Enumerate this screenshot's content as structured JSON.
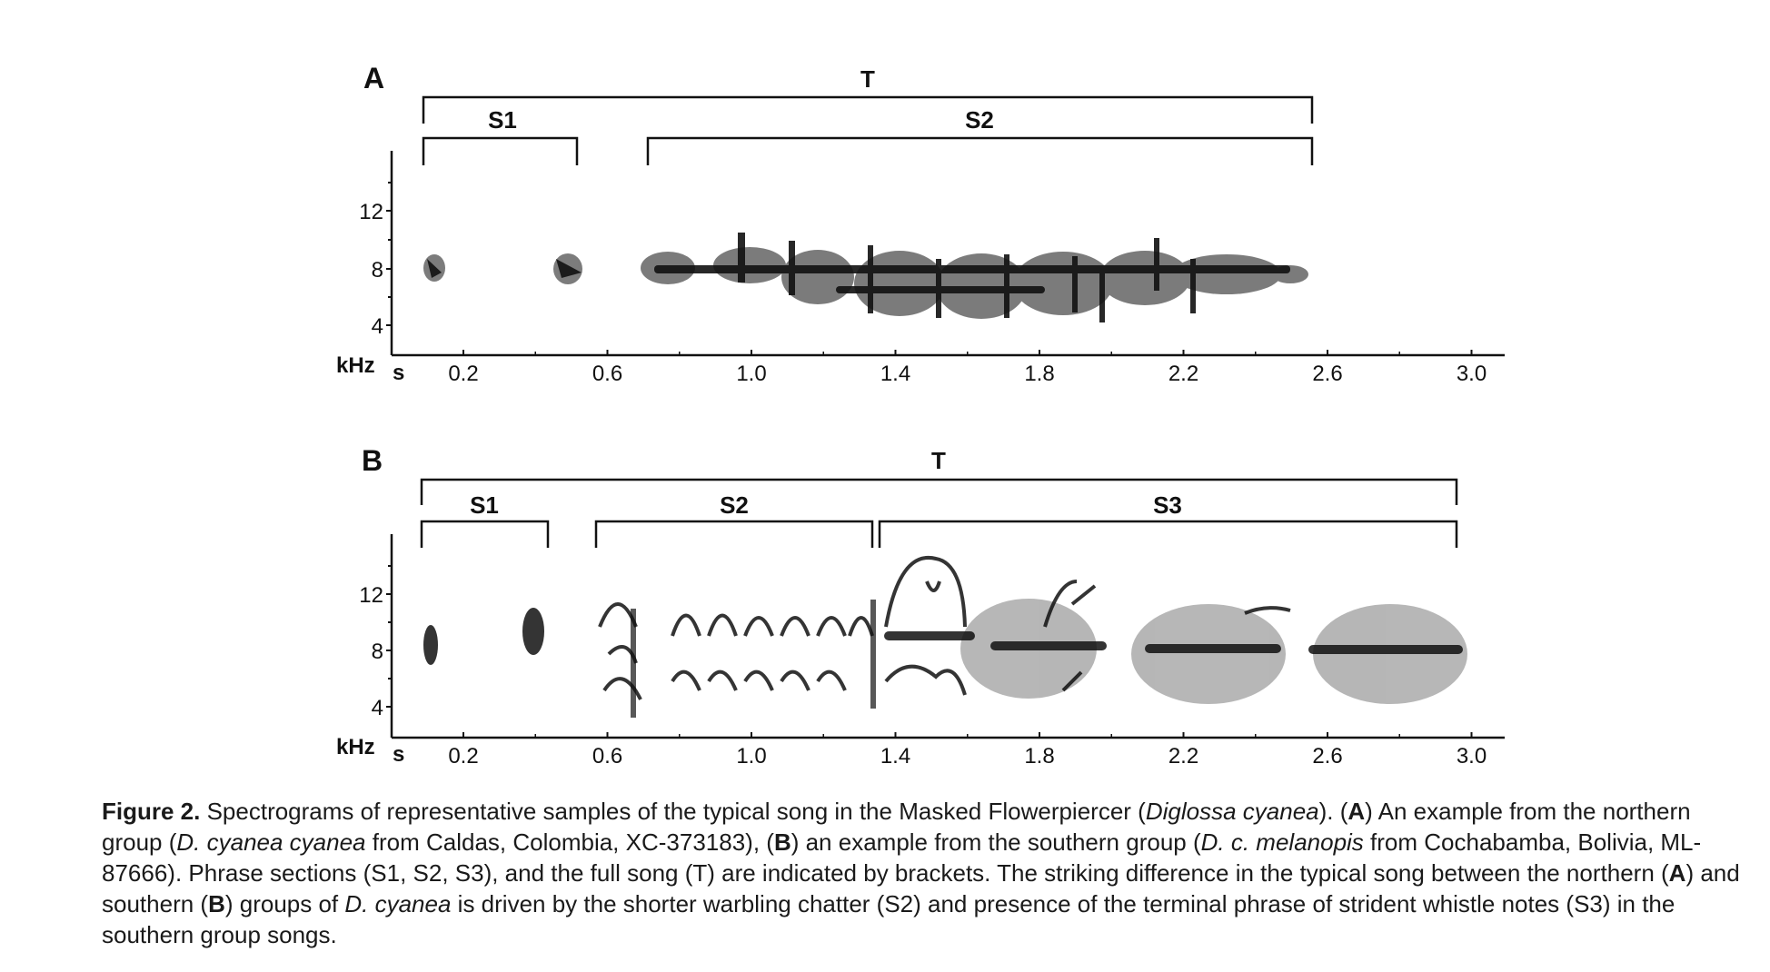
{
  "figure": {
    "panels": [
      {
        "letter": "A",
        "brackets": [
          {
            "label": "T",
            "start": 0.08,
            "end": 2.55,
            "level": 0
          },
          {
            "label": "S1",
            "start": 0.08,
            "end": 0.51,
            "level": 1
          },
          {
            "label": "S2",
            "start": 0.7,
            "end": 2.55,
            "level": 1
          }
        ]
      },
      {
        "letter": "B",
        "brackets": [
          {
            "label": "T",
            "start": 0.08,
            "end": 2.95,
            "level": 0
          },
          {
            "label": "S1",
            "start": 0.08,
            "end": 0.43,
            "level": 1
          },
          {
            "label": "S2",
            "start": 0.57,
            "end": 1.33,
            "level": 1
          },
          {
            "label": "S3",
            "start": 1.35,
            "end": 2.95,
            "level": 1
          }
        ]
      }
    ],
    "y_unit": "kHz",
    "x_unit": "s",
    "y_ticks": [
      "12",
      "8",
      "4"
    ],
    "x_ticks": [
      "0.2",
      "0.6",
      "1.0",
      "1.4",
      "1.8",
      "2.2",
      "2.6",
      "3.0"
    ]
  },
  "caption": {
    "label": "Figure 2.",
    "p1": " Spectrograms of representative samples of the typical song in the Masked Flowerpiercer (",
    "species": "Diglossa cyanea",
    "p2": "). (",
    "A1": "A",
    "p3": ") An example from the northern group (",
    "taxA": "D. cyanea cyanea",
    "p4": " from Caldas, Colombia, XC-373183), (",
    "B1": "B",
    "p5": ") an example from the southern group (",
    "taxB": "D. c. melanopis",
    "p6": " from Cochabamba, Bolivia, ML-87666). Phrase sections (S1, S2, S3), and the full song (T) are indicated by brackets. The striking difference in the typical song between the northern (",
    "A2": "A",
    "p7": ") and southern (",
    "B2": "B",
    "p8": ") groups of ",
    "taxC": "D. cyanea",
    "p9": " is driven by the shorter warbling chatter (S2) and presence of the terminal phrase of strident whistle notes (S3) in the southern group songs."
  }
}
